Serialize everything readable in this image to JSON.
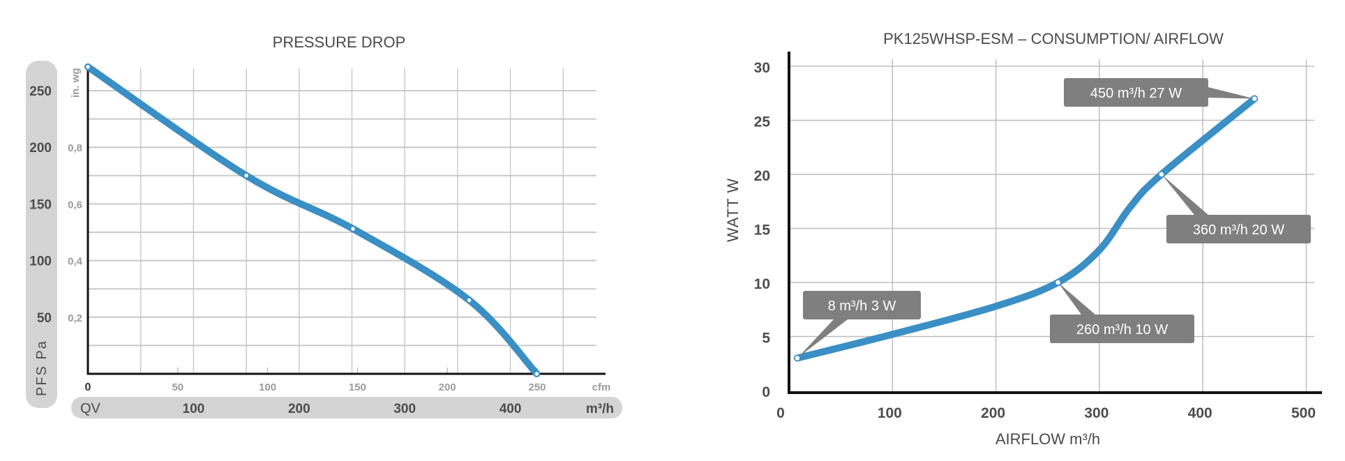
{
  "chart_data": [
    {
      "type": "line",
      "title": "PRESSURE DROP",
      "xlabel": "QV",
      "x_unit": "m³/h",
      "x_secondary_unit": "cfm",
      "ylabel": "PFS Pa",
      "y_secondary_unit": "in. wg",
      "xlim": [
        0,
        475
      ],
      "ylim": [
        0,
        275
      ],
      "x_ticks": [
        100,
        200,
        300,
        400
      ],
      "x_secondary_ticks": [
        "0",
        "50",
        "100",
        "150",
        "200",
        "250"
      ],
      "y_ticks": [
        50,
        100,
        150,
        200,
        250
      ],
      "y_secondary_ticks": [
        "0,2",
        "0,4",
        "0,6",
        "0,8"
      ],
      "grid": true,
      "color": "#3a8fc4",
      "series": [
        {
          "name": "Pressure drop",
          "x": [
            0,
            150,
            251,
            361,
            425
          ],
          "y": [
            271,
            175,
            128,
            65,
            0
          ]
        }
      ]
    },
    {
      "type": "line",
      "title": "PK125WHSP-ESM – CONSUMPTION/ AIRFLOW",
      "xlabel": "AIRFLOW m³/h",
      "ylabel": "WATT W",
      "xlim": [
        0,
        500
      ],
      "ylim": [
        0,
        30
      ],
      "x_ticks": [
        0,
        100,
        200,
        300,
        400,
        500
      ],
      "y_ticks": [
        0,
        5,
        10,
        15,
        20,
        25,
        30
      ],
      "grid": true,
      "color": "#3a8fc4",
      "series": [
        {
          "name": "Consumption",
          "x": [
            8,
            100,
            200,
            260,
            300,
            330,
            360,
            450
          ],
          "y": [
            3,
            5.2,
            7.8,
            10,
            13,
            17,
            20,
            27
          ]
        }
      ],
      "annotations": [
        {
          "x": 8,
          "y": 3,
          "text": "8 m³/h  3 W"
        },
        {
          "x": 260,
          "y": 10,
          "text": "260 m³/h  10 W"
        },
        {
          "x": 360,
          "y": 20,
          "text": "360 m³/h  20 W"
        },
        {
          "x": 450,
          "y": 27,
          "text": "450 m³/h  27 W"
        }
      ]
    }
  ]
}
